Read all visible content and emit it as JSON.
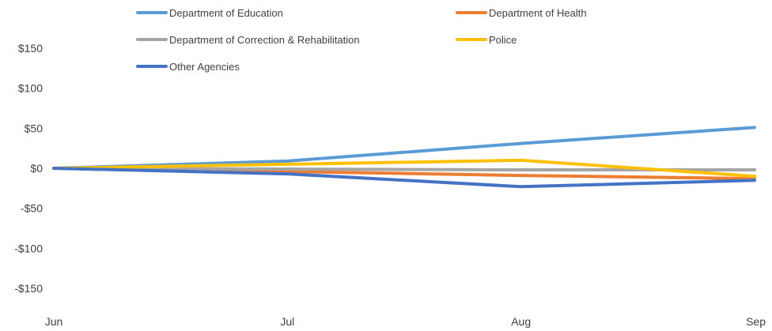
{
  "chart_data": {
    "type": "line",
    "title": "",
    "xlabel": "",
    "ylabel": "",
    "categories": [
      "Jun",
      "Jul",
      "Aug",
      "Sep"
    ],
    "ylim": [
      -150,
      150
    ],
    "yticks": [
      150,
      100,
      50,
      0,
      -50,
      -100,
      -150
    ],
    "ytick_labels": [
      "$150",
      "$100",
      "$50",
      "$0",
      "-$50",
      "-$100",
      "-$150"
    ],
    "grid": false,
    "legend_position": "top",
    "series": [
      {
        "name": "Department of Education",
        "color": "#5B9BD5",
        "values": [
          0,
          9,
          31,
          51
        ]
      },
      {
        "name": "Department of Health",
        "color": "#ED7D31",
        "values": [
          0,
          -4,
          -9,
          -13
        ]
      },
      {
        "name": "Department of Correction & Rehabilitation",
        "color": "#A5A5A5",
        "values": [
          0,
          -1,
          -2,
          -2
        ]
      },
      {
        "name": "Police",
        "color": "#FFC000",
        "values": [
          0,
          5,
          10,
          -10
        ]
      },
      {
        "name": "Other Agencies",
        "color": "#4472C4",
        "values": [
          0,
          -7,
          -23,
          -15
        ]
      }
    ]
  }
}
